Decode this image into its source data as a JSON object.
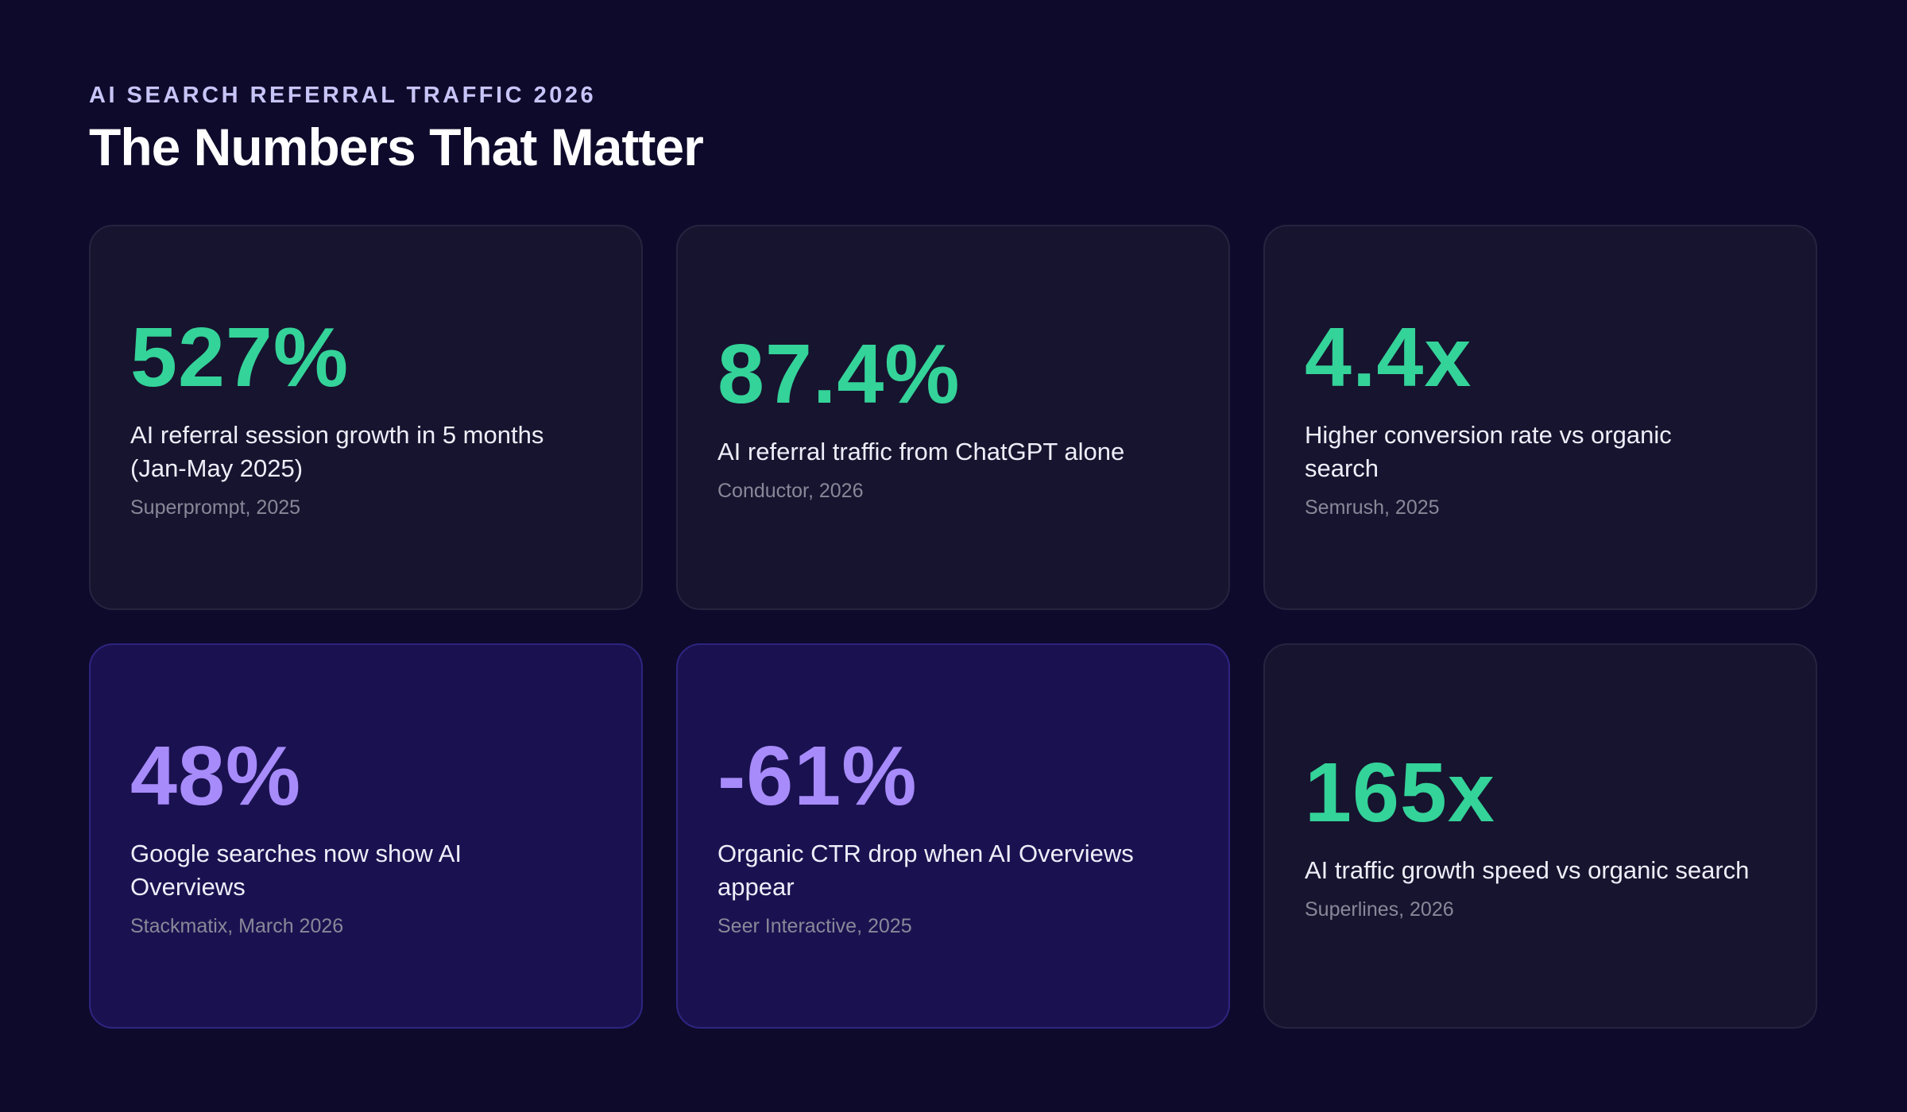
{
  "header": {
    "eyebrow": "AI SEARCH REFERRAL TRAFFIC 2026",
    "title": "The Numbers That Matter"
  },
  "cards": [
    {
      "value": "527%",
      "label": "AI referral session growth in 5 months (Jan-May 2025)",
      "source": "Superprompt, 2025",
      "color": "#34d399",
      "highlight": false
    },
    {
      "value": "87.4%",
      "label": "AI referral traffic from ChatGPT alone",
      "source": "Conductor, 2026",
      "color": "#34d399",
      "highlight": false
    },
    {
      "value": "4.4x",
      "label": "Higher conversion rate vs organic search",
      "source": "Semrush, 2025",
      "color": "#34d399",
      "highlight": false
    },
    {
      "value": "48%",
      "label": "Google searches now show AI Overviews",
      "source": "Stackmatix, March 2026",
      "color": "#a78bfa",
      "highlight": true
    },
    {
      "value": "-61%",
      "label": "Organic CTR drop when AI Overviews appear",
      "source": "Seer Interactive, 2025",
      "color": "#a78bfa",
      "highlight": true
    },
    {
      "value": "165x",
      "label": "AI traffic growth speed vs organic search",
      "source": "Superlines, 2026",
      "color": "#34d399",
      "highlight": false
    }
  ]
}
